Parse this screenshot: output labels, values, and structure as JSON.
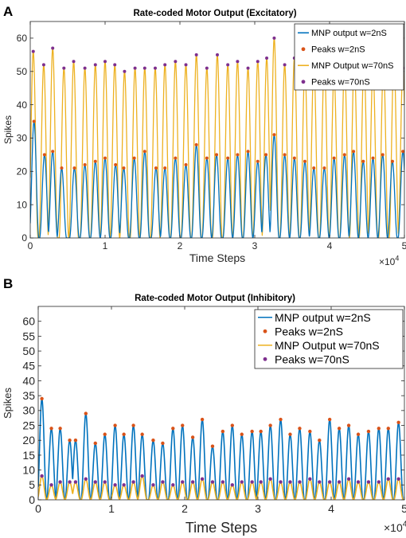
{
  "colors": {
    "blue": "#0072BD",
    "orange": "#EDB120",
    "peak_blue": "#D95319",
    "peak_orange": "#7E2F8E",
    "axis": "#262626"
  },
  "chart_data": [
    {
      "panel": "A",
      "type": "line",
      "title": "Rate-coded Motor Output (Excitatory)",
      "xlabel": "Time Steps",
      "ylabel": "Spikes",
      "x_exponent_label": "×10",
      "x_exponent": "4",
      "xlim": [
        0,
        5
      ],
      "ylim": [
        0,
        65
      ],
      "xticks": [
        0,
        1,
        2,
        3,
        4,
        5
      ],
      "yticks": [
        0,
        10,
        20,
        30,
        40,
        50,
        60
      ],
      "legend_position": "top-right",
      "series": [
        {
          "name": "MNP output w=2nS",
          "kind": "line",
          "color_key": "blue",
          "x": [
            0.05,
            0.19,
            0.3,
            0.42,
            0.59,
            0.73,
            0.87,
            1.0,
            1.14,
            1.25,
            1.39,
            1.53,
            1.68,
            1.8,
            1.94,
            2.08,
            2.22,
            2.36,
            2.49,
            2.64,
            2.77,
            2.91,
            3.04,
            3.15,
            3.26,
            3.4,
            3.53,
            3.67,
            3.79,
            3.93,
            4.06,
            4.2,
            4.32,
            4.45,
            4.58,
            4.71,
            4.84,
            4.98
          ],
          "y": [
            35,
            25,
            26,
            21,
            21,
            22,
            23,
            24,
            22,
            21,
            24,
            26,
            21,
            21,
            24,
            22,
            28,
            24,
            25,
            24,
            25,
            26,
            23,
            25,
            31,
            25,
            24,
            23,
            21,
            21,
            24,
            25,
            26,
            23,
            24,
            25,
            23,
            26
          ]
        },
        {
          "name": "Peaks w=2nS",
          "kind": "markers",
          "color_key": "peak_blue",
          "x": [
            0.05,
            0.19,
            0.3,
            0.42,
            0.59,
            0.73,
            0.87,
            1.0,
            1.14,
            1.25,
            1.39,
            1.53,
            1.68,
            1.8,
            1.94,
            2.08,
            2.22,
            2.36,
            2.49,
            2.64,
            2.77,
            2.91,
            3.04,
            3.15,
            3.26,
            3.4,
            3.53,
            3.67,
            3.79,
            3.93,
            4.06,
            4.2,
            4.32,
            4.45,
            4.58,
            4.71,
            4.84,
            4.98
          ],
          "y": [
            35,
            25,
            26,
            21,
            21,
            22,
            23,
            24,
            22,
            21,
            24,
            26,
            21,
            21,
            24,
            22,
            28,
            24,
            25,
            24,
            25,
            26,
            23,
            25,
            31,
            25,
            24,
            23,
            21,
            21,
            24,
            25,
            26,
            23,
            24,
            25,
            23,
            26
          ]
        },
        {
          "name": "MNP Output w=70nS",
          "kind": "line",
          "color_key": "orange",
          "x": [
            0.04,
            0.18,
            0.3,
            0.45,
            0.58,
            0.73,
            0.87,
            1.0,
            1.13,
            1.26,
            1.4,
            1.53,
            1.67,
            1.8,
            1.94,
            2.08,
            2.22,
            2.36,
            2.5,
            2.64,
            2.77,
            2.91,
            3.04,
            3.16,
            3.26,
            3.4,
            3.53,
            3.67,
            3.79,
            3.93,
            4.06,
            4.2,
            4.33,
            4.46,
            4.58,
            4.72,
            4.86,
            4.98
          ],
          "y": [
            56,
            52,
            57,
            51,
            53,
            51,
            52,
            53,
            52,
            50,
            51,
            51,
            51,
            52,
            53,
            52,
            55,
            51,
            55,
            52,
            53,
            51,
            53,
            54,
            60,
            52,
            54,
            51,
            52,
            53,
            49,
            52,
            53,
            53,
            51,
            52,
            54,
            51
          ]
        },
        {
          "name": "Peaks w=70nS",
          "kind": "markers",
          "color_key": "peak_orange",
          "x": [
            0.04,
            0.18,
            0.3,
            0.45,
            0.58,
            0.73,
            0.87,
            1.0,
            1.13,
            1.26,
            1.4,
            1.53,
            1.67,
            1.8,
            1.94,
            2.08,
            2.22,
            2.36,
            2.5,
            2.64,
            2.77,
            2.91,
            3.04,
            3.16,
            3.26,
            3.4,
            3.53,
            3.67,
            3.79,
            3.93,
            4.06,
            4.2,
            4.33,
            4.46,
            4.58,
            4.72,
            4.86,
            4.98
          ],
          "y": [
            56,
            52,
            57,
            51,
            53,
            51,
            52,
            53,
            52,
            50,
            51,
            51,
            51,
            52,
            53,
            52,
            55,
            51,
            55,
            52,
            53,
            51,
            53,
            54,
            60,
            52,
            54,
            51,
            52,
            53,
            49,
            52,
            53,
            53,
            51,
            52,
            54,
            51
          ]
        }
      ]
    },
    {
      "panel": "B",
      "type": "line",
      "title": "Rate-coded Motor Output (Inhibitory)",
      "xlabel": "Time Steps",
      "ylabel": "Spikes",
      "x_exponent_label": "×10",
      "x_exponent": "4",
      "xlim": [
        0,
        5
      ],
      "ylim": [
        0,
        65
      ],
      "xticks": [
        0,
        1,
        2,
        3,
        4,
        5
      ],
      "yticks": [
        0,
        5,
        10,
        15,
        20,
        25,
        30,
        35,
        40,
        45,
        50,
        55,
        60
      ],
      "legend_position": "top-right",
      "series": [
        {
          "name": "MNP output w=2nS",
          "kind": "line",
          "color_key": "blue",
          "x": [
            0.05,
            0.18,
            0.3,
            0.43,
            0.51,
            0.65,
            0.78,
            0.91,
            1.05,
            1.17,
            1.3,
            1.42,
            1.57,
            1.7,
            1.84,
            1.97,
            2.11,
            2.24,
            2.38,
            2.52,
            2.65,
            2.78,
            2.92,
            3.04,
            3.17,
            3.31,
            3.44,
            3.57,
            3.71,
            3.84,
            3.98,
            4.11,
            4.24,
            4.37,
            4.51,
            4.65,
            4.78,
            4.92
          ],
          "y": [
            34,
            24,
            24,
            20,
            20,
            29,
            19,
            22,
            25,
            22,
            25,
            22,
            20,
            19,
            24,
            25,
            21,
            27,
            18,
            23,
            25,
            22,
            23,
            23,
            25,
            27,
            22,
            24,
            23,
            20,
            27,
            24,
            25,
            22,
            23,
            24,
            24,
            26
          ]
        },
        {
          "name": "Peaks w=2nS",
          "kind": "markers",
          "color_key": "peak_blue",
          "x": [
            0.05,
            0.18,
            0.3,
            0.43,
            0.51,
            0.65,
            0.78,
            0.91,
            1.05,
            1.17,
            1.3,
            1.42,
            1.57,
            1.7,
            1.84,
            1.97,
            2.11,
            2.24,
            2.38,
            2.52,
            2.65,
            2.78,
            2.92,
            3.04,
            3.17,
            3.31,
            3.44,
            3.57,
            3.71,
            3.84,
            3.98,
            4.11,
            4.24,
            4.37,
            4.51,
            4.65,
            4.78,
            4.92
          ],
          "y": [
            34,
            24,
            24,
            20,
            20,
            29,
            19,
            22,
            25,
            22,
            25,
            22,
            20,
            19,
            24,
            25,
            21,
            27,
            18,
            23,
            25,
            22,
            23,
            23,
            25,
            27,
            22,
            24,
            23,
            20,
            27,
            24,
            25,
            22,
            23,
            24,
            24,
            26
          ]
        },
        {
          "name": "MNP Output w=70nS",
          "kind": "line",
          "color_key": "orange",
          "x": [
            0.05,
            0.18,
            0.3,
            0.43,
            0.51,
            0.65,
            0.78,
            0.91,
            1.05,
            1.17,
            1.3,
            1.42,
            1.57,
            1.7,
            1.84,
            1.97,
            2.11,
            2.24,
            2.38,
            2.52,
            2.65,
            2.78,
            2.92,
            3.04,
            3.17,
            3.31,
            3.44,
            3.57,
            3.71,
            3.84,
            3.98,
            4.11,
            4.24,
            4.37,
            4.51,
            4.65,
            4.78,
            4.92
          ],
          "y": [
            8,
            5,
            6,
            6,
            6,
            7,
            6,
            6,
            5,
            5,
            6,
            8,
            5,
            6,
            5,
            6,
            6,
            7,
            6,
            6,
            5,
            6,
            6,
            6,
            7,
            6,
            6,
            6,
            7,
            6,
            6,
            6,
            7,
            6,
            6,
            6,
            7,
            7
          ]
        },
        {
          "name": "Peaks w=70nS",
          "kind": "markers",
          "color_key": "peak_orange",
          "x": [
            0.05,
            0.18,
            0.3,
            0.43,
            0.51,
            0.65,
            0.78,
            0.91,
            1.05,
            1.17,
            1.3,
            1.42,
            1.57,
            1.7,
            1.84,
            1.97,
            2.11,
            2.24,
            2.38,
            2.52,
            2.65,
            2.78,
            2.92,
            3.04,
            3.17,
            3.31,
            3.44,
            3.57,
            3.71,
            3.84,
            3.98,
            4.11,
            4.24,
            4.37,
            4.51,
            4.65,
            4.78,
            4.92
          ],
          "y": [
            8,
            5,
            6,
            6,
            6,
            7,
            6,
            6,
            5,
            5,
            6,
            8,
            5,
            6,
            5,
            6,
            6,
            7,
            6,
            6,
            5,
            6,
            6,
            6,
            7,
            6,
            6,
            6,
            7,
            6,
            6,
            6,
            7,
            6,
            6,
            6,
            7,
            7
          ]
        }
      ]
    }
  ]
}
